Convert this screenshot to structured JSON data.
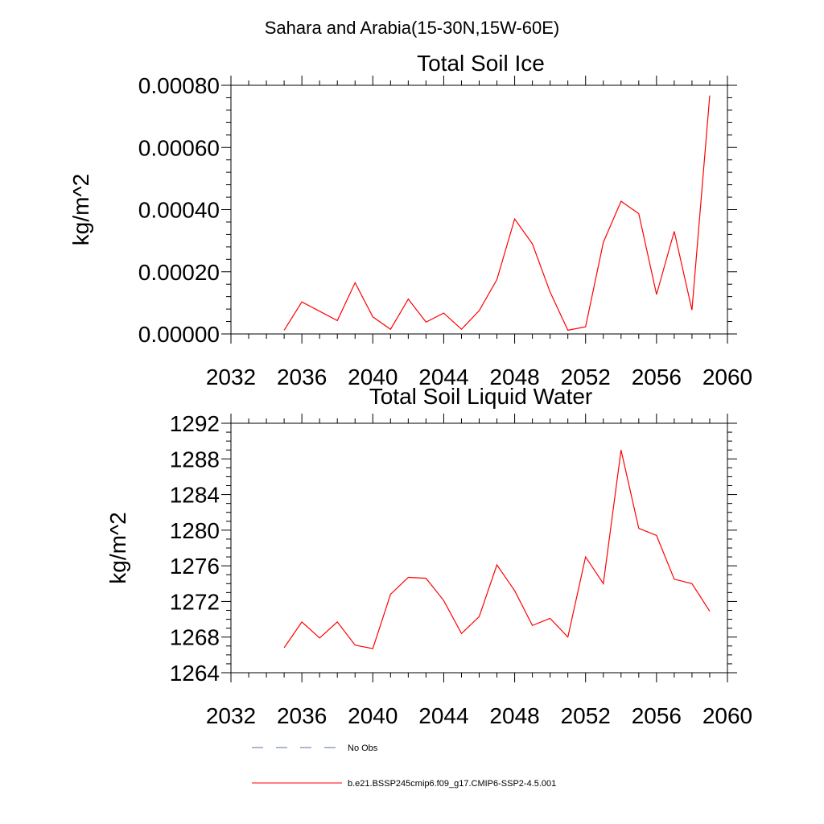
{
  "title": "Sahara and Arabia(15-30N,15W-60E)",
  "chart_data": [
    {
      "type": "line",
      "title": "Total Soil Ice",
      "xlabel": "",
      "ylabel": "kg/m^2",
      "xlim": [
        2032,
        2060
      ],
      "ylim": [
        0,
        0.0008
      ],
      "xticks": [
        2032,
        2036,
        2040,
        2044,
        2048,
        2052,
        2056,
        2060
      ],
      "xtick_labels": [
        "2032",
        "2036",
        "2040",
        "2044",
        "2048",
        "2052",
        "2056",
        "2060"
      ],
      "yticks": [
        0,
        0.0002,
        0.0004,
        0.0006,
        0.0008
      ],
      "ytick_labels": [
        "0.00000",
        "0.00020",
        "0.00040",
        "0.00060",
        "0.00080"
      ],
      "grid": false,
      "series": [
        {
          "name": "b.e21.BSSP245cmip6.f09_g17.CMIP6-SSP2-4.5.001",
          "color": "#ff0000",
          "x": [
            2035,
            2036,
            2037,
            2038,
            2039,
            2040,
            2041,
            2042,
            2043,
            2044,
            2045,
            2046,
            2047,
            2048,
            2049,
            2050,
            2051,
            2052,
            2053,
            2054,
            2055,
            2056,
            2057,
            2058,
            2059
          ],
          "y": [
            1.2e-05,
            0.000103,
            7.3e-05,
            4.3e-05,
            0.000165,
            5.5e-05,
            1.5e-05,
            0.000112,
            3.8e-05,
            6.7e-05,
            1.5e-05,
            7.5e-05,
            0.000175,
            0.00037,
            0.00029,
            0.000135,
            1.2e-05,
            2.3e-05,
            0.000295,
            0.000427,
            0.000387,
            0.000127,
            0.00033,
            7.7e-05,
            0.000767
          ]
        }
      ]
    },
    {
      "type": "line",
      "title": "Total Soil Liquid Water",
      "xlabel": "",
      "ylabel": "kg/m^2",
      "xlim": [
        2032,
        2060
      ],
      "ylim": [
        1264,
        1292
      ],
      "xticks": [
        2032,
        2036,
        2040,
        2044,
        2048,
        2052,
        2056,
        2060
      ],
      "xtick_labels": [
        "2032",
        "2036",
        "2040",
        "2044",
        "2048",
        "2052",
        "2056",
        "2060"
      ],
      "yticks": [
        1264,
        1268,
        1272,
        1276,
        1280,
        1284,
        1288,
        1292
      ],
      "ytick_labels": [
        "1264",
        "1268",
        "1272",
        "1276",
        "1280",
        "1284",
        "1288",
        "1292"
      ],
      "grid": false,
      "series": [
        {
          "name": "b.e21.BSSP245cmip6.f09_g17.CMIP6-SSP2-4.5.001",
          "color": "#ff0000",
          "x": [
            2035,
            2036,
            2037,
            2038,
            2039,
            2040,
            2041,
            2042,
            2043,
            2044,
            2045,
            2046,
            2047,
            2048,
            2049,
            2050,
            2051,
            2052,
            2053,
            2054,
            2055,
            2056,
            2057,
            2058,
            2059
          ],
          "y": [
            1266.8,
            1269.7,
            1267.9,
            1269.7,
            1267.1,
            1266.7,
            1272.8,
            1274.7,
            1274.6,
            1272.1,
            1268.4,
            1270.3,
            1276.1,
            1273.2,
            1269.3,
            1270.1,
            1268.0,
            1277.0,
            1274.0,
            1289.0,
            1280.2,
            1279.4,
            1274.5,
            1274.0,
            1270.9
          ]
        }
      ]
    }
  ],
  "legend": [
    {
      "label": "No Obs",
      "color": "#5a6fa8",
      "dash": "dashed"
    },
    {
      "label": "b.e21.BSSP245cmip6.f09_g17.CMIP6-SSP2-4.5.001",
      "color": "#ff0000",
      "dash": "solid"
    }
  ]
}
